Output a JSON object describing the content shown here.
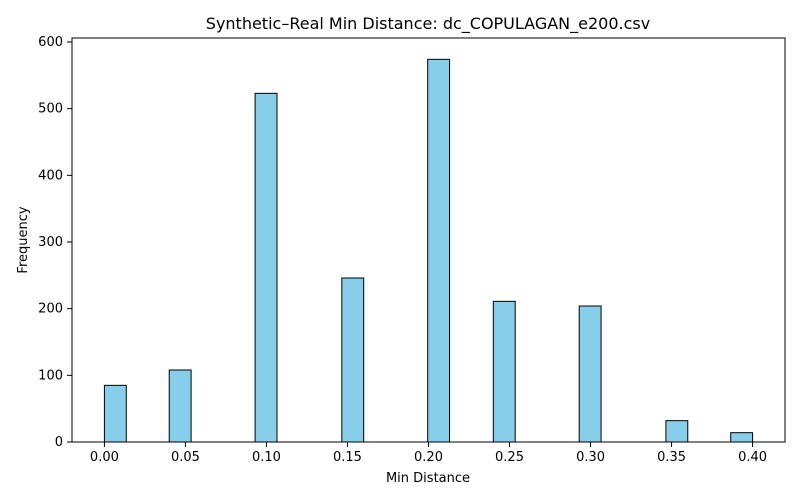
{
  "chart_data": {
    "type": "bar",
    "title": "Synthetic–Real Min Distance: dc_COPULAGAN_e200.csv",
    "xlabel": "Min Distance",
    "ylabel": "Frequency",
    "xlim": [
      -0.02,
      0.42
    ],
    "ylim": [
      0,
      606
    ],
    "bar_width": 0.0135,
    "bars": [
      {
        "x": 0.0,
        "value": 85
      },
      {
        "x": 0.04,
        "value": 108
      },
      {
        "x": 0.093,
        "value": 523
      },
      {
        "x": 0.1465,
        "value": 246
      },
      {
        "x": 0.1995,
        "value": 574
      },
      {
        "x": 0.24,
        "value": 211
      },
      {
        "x": 0.293,
        "value": 204
      },
      {
        "x": 0.3465,
        "value": 32
      },
      {
        "x": 0.3865,
        "value": 14
      }
    ],
    "xticks": [
      {
        "value": 0.0,
        "label": "0.00"
      },
      {
        "value": 0.05,
        "label": "0.05"
      },
      {
        "value": 0.1,
        "label": "0.10"
      },
      {
        "value": 0.15,
        "label": "0.15"
      },
      {
        "value": 0.2,
        "label": "0.20"
      },
      {
        "value": 0.25,
        "label": "0.25"
      },
      {
        "value": 0.3,
        "label": "0.30"
      },
      {
        "value": 0.35,
        "label": "0.35"
      },
      {
        "value": 0.4,
        "label": "0.40"
      }
    ],
    "yticks": [
      {
        "value": 0,
        "label": "0"
      },
      {
        "value": 100,
        "label": "100"
      },
      {
        "value": 200,
        "label": "200"
      },
      {
        "value": 300,
        "label": "300"
      },
      {
        "value": 400,
        "label": "400"
      },
      {
        "value": 500,
        "label": "500"
      },
      {
        "value": 600,
        "label": "600"
      }
    ],
    "grid": false,
    "colors": {
      "bar_fill": "#87CEEB",
      "bar_edge": "#000000",
      "axis": "#000000"
    }
  }
}
